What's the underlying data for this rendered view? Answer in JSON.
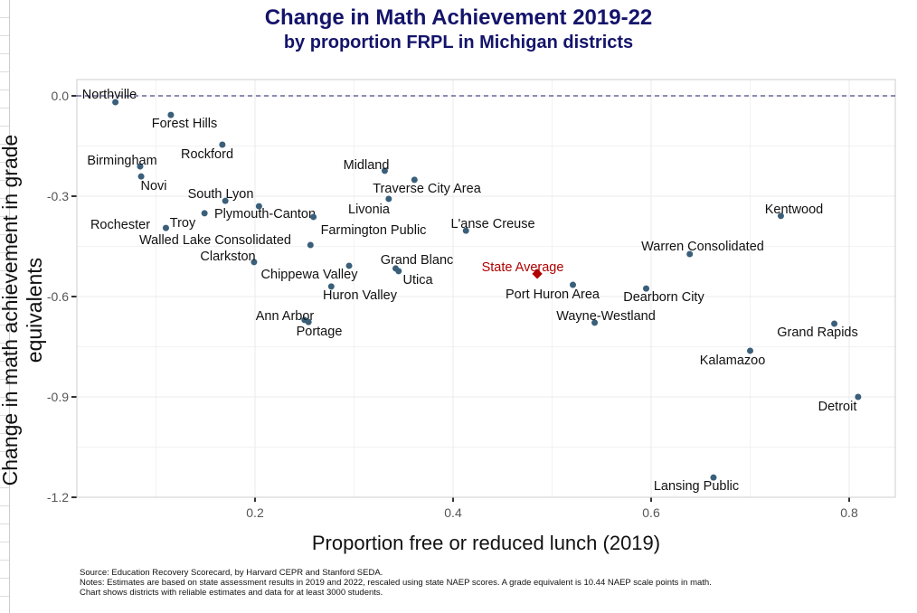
{
  "chart_data": {
    "type": "scatter",
    "title": "Change in Math Achievement 2019-22",
    "subtitle": "by proportion FRPL in Michigan districts",
    "xlabel": "Proportion free or reduced lunch (2019)",
    "ylabel": "Change in math achievement in grade equivalents",
    "xlim": [
      0.02,
      0.84
    ],
    "ylim": [
      -1.22,
      0.05
    ],
    "xticks": [
      "0.2",
      "0.4",
      "0.6",
      "0.8"
    ],
    "yticks": [
      "0.0",
      "-0.3",
      "-0.6",
      "-0.9",
      "-1.2"
    ],
    "grid": true,
    "reference_line": {
      "y": 0,
      "style": "dashed",
      "color": "#1a1a6e"
    },
    "point_color": "#3a5f7a",
    "highlight_color": "#b00000",
    "points": [
      {
        "name": "Northville",
        "x": 0.059,
        "y": -0.019
      },
      {
        "name": "Forest Hills",
        "x": 0.115,
        "y": -0.057
      },
      {
        "name": "Rockford",
        "x": 0.167,
        "y": -0.146
      },
      {
        "name": "Birmingham",
        "x": 0.084,
        "y": -0.211
      },
      {
        "name": "Novi",
        "x": 0.085,
        "y": -0.241
      },
      {
        "name": "South Lyon",
        "x": 0.17,
        "y": -0.314
      },
      {
        "name": "Plymouth-Canton",
        "x": 0.204,
        "y": -0.33
      },
      {
        "name": "Troy",
        "x": 0.149,
        "y": -0.351
      },
      {
        "name": "Rochester",
        "x": 0.11,
        "y": -0.395
      },
      {
        "name": "Farmington Public",
        "x": 0.259,
        "y": -0.362
      },
      {
        "name": "Walled Lake Consolidated",
        "x": 0.256,
        "y": -0.446
      },
      {
        "name": "Clarkston",
        "x": 0.199,
        "y": -0.497
      },
      {
        "name": "Midland",
        "x": 0.331,
        "y": -0.224
      },
      {
        "name": "Traverse City Area",
        "x": 0.361,
        "y": -0.251
      },
      {
        "name": "Livonia",
        "x": 0.335,
        "y": -0.308
      },
      {
        "name": "L'anse Creuse",
        "x": 0.413,
        "y": -0.403
      },
      {
        "name": "Chippewa Valley",
        "x": 0.295,
        "y": -0.508
      },
      {
        "name": "Grand Blanc",
        "x": 0.342,
        "y": -0.516
      },
      {
        "name": "Utica",
        "x": 0.345,
        "y": -0.524
      },
      {
        "name": "Huron Valley",
        "x": 0.277,
        "y": -0.57
      },
      {
        "name": "Ann Arbor",
        "x": 0.25,
        "y": -0.67
      },
      {
        "name": "Portage",
        "x": 0.254,
        "y": -0.676
      },
      {
        "name": "State Average",
        "x": 0.485,
        "y": -0.532,
        "highlight": true
      },
      {
        "name": "Port Huron Area",
        "x": 0.521,
        "y": -0.565
      },
      {
        "name": "Dearborn City",
        "x": 0.595,
        "y": -0.576
      },
      {
        "name": "Wayne-Westland",
        "x": 0.543,
        "y": -0.678
      },
      {
        "name": "Warren Consolidated",
        "x": 0.639,
        "y": -0.473
      },
      {
        "name": "Kentwood",
        "x": 0.731,
        "y": -0.359
      },
      {
        "name": "Grand Rapids",
        "x": 0.785,
        "y": -0.681
      },
      {
        "name": "Kalamazoo",
        "x": 0.7,
        "y": -0.762
      },
      {
        "name": "Detroit",
        "x": 0.809,
        "y": -0.9
      },
      {
        "name": "Lansing Public",
        "x": 0.663,
        "y": -1.141
      }
    ]
  },
  "notes": {
    "source": "Source: Education Recovery Scorecard, by Harvard CEPR and Stanford SEDA.",
    "notes": "Notes: Estimates are based on state assessment results in 2019 and 2022, rescaled using state NAEP scores. A grade equivalent is 10.44 NAEP scale points in math.",
    "scope": "Chart shows districts with reliable estimates and data for at least 3000 students."
  }
}
